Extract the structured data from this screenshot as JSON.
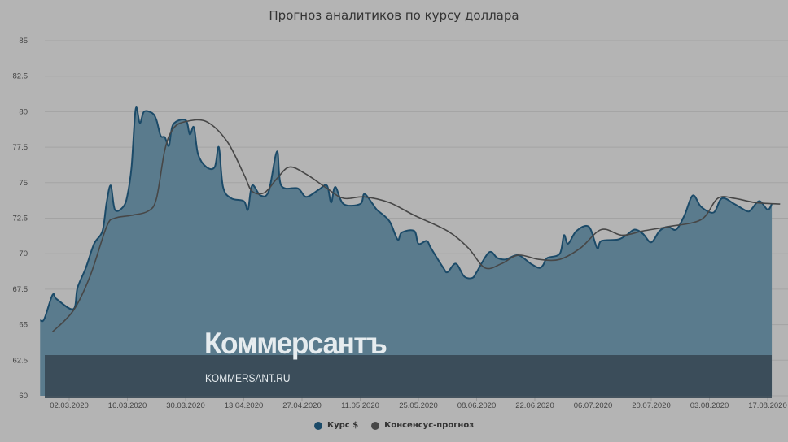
{
  "chart_data": {
    "type": "area",
    "title": "Прогноз аналитиков по курсу доллара",
    "xlabel": "",
    "ylabel": "",
    "ylim": [
      60,
      85
    ],
    "yticks": [
      "60",
      "62.5",
      "65",
      "67.5",
      "70",
      "72.5",
      "75",
      "77.5",
      "80",
      "82.5",
      "85"
    ],
    "xticks": [
      "02.03.2020",
      "16.03.2020",
      "30.03.2020",
      "13.04.2020",
      "27.04.2020",
      "11.05.2020",
      "25.05.2020",
      "08.06.2020",
      "22.06.2020",
      "06.07.2020",
      "20.07.2020",
      "03.08.2020",
      "17.08.2020"
    ],
    "grid": true,
    "legend_position": "bottom",
    "series": [
      {
        "name": "Курс $",
        "color": "#1b4a68",
        "fill": "#5a7b8d",
        "points": [
          [
            "2020-02-24",
            65.3
          ],
          [
            "2020-02-25",
            65.4
          ],
          [
            "2020-02-27",
            67.1
          ],
          [
            "2020-02-28",
            66.8
          ],
          [
            "2020-03-03",
            66.1
          ],
          [
            "2020-03-04",
            67.6
          ],
          [
            "2020-03-06",
            69.0
          ],
          [
            "2020-03-08",
            70.7
          ],
          [
            "2020-03-10",
            71.6
          ],
          [
            "2020-03-11",
            73.6
          ],
          [
            "2020-03-12",
            74.8
          ],
          [
            "2020-03-13",
            73.1
          ],
          [
            "2020-03-15",
            73.3
          ],
          [
            "2020-03-16",
            74.1
          ],
          [
            "2020-03-17",
            76.1
          ],
          [
            "2020-03-18",
            80.2
          ],
          [
            "2020-03-19",
            79.2
          ],
          [
            "2020-03-20",
            80.0
          ],
          [
            "2020-03-22",
            79.9
          ],
          [
            "2020-03-23",
            79.4
          ],
          [
            "2020-03-24",
            78.3
          ],
          [
            "2020-03-25",
            78.2
          ],
          [
            "2020-03-26",
            77.6
          ],
          [
            "2020-03-27",
            79.1
          ],
          [
            "2020-03-30",
            79.4
          ],
          [
            "2020-03-31",
            78.4
          ],
          [
            "2020-04-01",
            78.9
          ],
          [
            "2020-04-02",
            77.0
          ],
          [
            "2020-04-04",
            76.1
          ],
          [
            "2020-04-06",
            76.1
          ],
          [
            "2020-04-07",
            77.5
          ],
          [
            "2020-04-08",
            74.7
          ],
          [
            "2020-04-10",
            73.9
          ],
          [
            "2020-04-13",
            73.7
          ],
          [
            "2020-04-14",
            73.1
          ],
          [
            "2020-04-15",
            74.8
          ],
          [
            "2020-04-17",
            74.1
          ],
          [
            "2020-04-19",
            74.4
          ],
          [
            "2020-04-21",
            77.2
          ],
          [
            "2020-04-22",
            74.8
          ],
          [
            "2020-04-26",
            74.6
          ],
          [
            "2020-04-28",
            74.0
          ],
          [
            "2020-05-01",
            74.5
          ],
          [
            "2020-05-03",
            74.8
          ],
          [
            "2020-05-04",
            73.6
          ],
          [
            "2020-05-05",
            74.7
          ],
          [
            "2020-05-07",
            73.5
          ],
          [
            "2020-05-11",
            73.5
          ],
          [
            "2020-05-12",
            74.2
          ],
          [
            "2020-05-14",
            73.5
          ],
          [
            "2020-05-15",
            73.1
          ],
          [
            "2020-05-18",
            72.3
          ],
          [
            "2020-05-20",
            71.0
          ],
          [
            "2020-05-21",
            71.5
          ],
          [
            "2020-05-24",
            71.6
          ],
          [
            "2020-05-25",
            70.7
          ],
          [
            "2020-05-27",
            70.9
          ],
          [
            "2020-05-28",
            70.4
          ],
          [
            "2020-05-31",
            69.0
          ],
          [
            "2020-06-01",
            68.7
          ],
          [
            "2020-06-03",
            69.3
          ],
          [
            "2020-06-05",
            68.4
          ],
          [
            "2020-06-07",
            68.3
          ],
          [
            "2020-06-08",
            68.7
          ],
          [
            "2020-06-11",
            70.1
          ],
          [
            "2020-06-13",
            69.7
          ],
          [
            "2020-06-15",
            69.6
          ],
          [
            "2020-06-18",
            69.9
          ],
          [
            "2020-06-21",
            69.3
          ],
          [
            "2020-06-23",
            69.0
          ],
          [
            "2020-06-24",
            69.2
          ],
          [
            "2020-06-25",
            69.7
          ],
          [
            "2020-06-28",
            70.0
          ],
          [
            "2020-06-29",
            71.3
          ],
          [
            "2020-06-30",
            70.7
          ],
          [
            "2020-07-02",
            71.6
          ],
          [
            "2020-07-05",
            71.9
          ],
          [
            "2020-07-07",
            70.4
          ],
          [
            "2020-07-08",
            70.9
          ],
          [
            "2020-07-12",
            71.0
          ],
          [
            "2020-07-14",
            71.3
          ],
          [
            "2020-07-16",
            71.7
          ],
          [
            "2020-07-18",
            71.4
          ],
          [
            "2020-07-20",
            70.8
          ],
          [
            "2020-07-22",
            71.6
          ],
          [
            "2020-07-24",
            71.9
          ],
          [
            "2020-07-26",
            71.7
          ],
          [
            "2020-07-28",
            72.7
          ],
          [
            "2020-07-30",
            74.1
          ],
          [
            "2020-08-01",
            73.3
          ],
          [
            "2020-08-04",
            72.9
          ],
          [
            "2020-08-06",
            73.9
          ],
          [
            "2020-08-09",
            73.5
          ],
          [
            "2020-08-12",
            73.0
          ],
          [
            "2020-08-13",
            73.1
          ],
          [
            "2020-08-15",
            73.7
          ],
          [
            "2020-08-17",
            73.1
          ],
          [
            "2020-08-18",
            73.5
          ]
        ]
      },
      {
        "name": "Консенсус-прогноз",
        "color": "#474747",
        "points": [
          [
            "2020-02-27",
            64.5
          ],
          [
            "2020-03-03",
            66.0
          ],
          [
            "2020-03-07",
            68.4
          ],
          [
            "2020-03-11",
            71.9
          ],
          [
            "2020-03-13",
            72.5
          ],
          [
            "2020-03-17",
            72.7
          ],
          [
            "2020-03-21",
            73.0
          ],
          [
            "2020-03-23",
            73.9
          ],
          [
            "2020-03-25",
            77.3
          ],
          [
            "2020-03-27",
            78.8
          ],
          [
            "2020-03-30",
            79.3
          ],
          [
            "2020-04-04",
            79.3
          ],
          [
            "2020-04-09",
            77.9
          ],
          [
            "2020-04-13",
            75.6
          ],
          [
            "2020-04-15",
            74.4
          ],
          [
            "2020-04-18",
            74.3
          ],
          [
            "2020-04-21",
            75.3
          ],
          [
            "2020-04-24",
            76.1
          ],
          [
            "2020-04-28",
            75.6
          ],
          [
            "2020-05-03",
            74.6
          ],
          [
            "2020-05-07",
            73.9
          ],
          [
            "2020-05-12",
            74.0
          ],
          [
            "2020-05-18",
            73.6
          ],
          [
            "2020-05-24",
            72.7
          ],
          [
            "2020-06-01",
            71.6
          ],
          [
            "2020-06-06",
            70.4
          ],
          [
            "2020-06-10",
            69.0
          ],
          [
            "2020-06-14",
            69.3
          ],
          [
            "2020-06-18",
            69.9
          ],
          [
            "2020-06-23",
            69.6
          ],
          [
            "2020-06-28",
            69.6
          ],
          [
            "2020-07-03",
            70.4
          ],
          [
            "2020-07-08",
            71.7
          ],
          [
            "2020-07-13",
            71.3
          ],
          [
            "2020-07-18",
            71.6
          ],
          [
            "2020-07-24",
            71.9
          ],
          [
            "2020-08-01",
            72.4
          ],
          [
            "2020-08-05",
            73.9
          ],
          [
            "2020-08-09",
            73.9
          ],
          [
            "2020-08-14",
            73.6
          ],
          [
            "2020-08-20",
            73.5
          ]
        ]
      }
    ]
  },
  "watermark": {
    "logo": "Коммерсантъ",
    "site": "KOMMERSANT.RU"
  }
}
